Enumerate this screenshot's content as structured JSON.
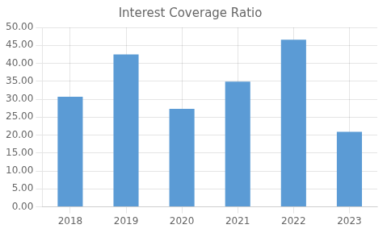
{
  "chart_data": {
    "type": "bar",
    "title": "Interest Coverage Ratio",
    "categories": [
      "2018",
      "2019",
      "2020",
      "2021",
      "2022",
      "2023"
    ],
    "values": [
      30.7,
      42.5,
      27.3,
      34.9,
      46.6,
      20.9
    ],
    "color": "#5B9BD5",
    "ylim": [
      0,
      50
    ],
    "yticks": [
      {
        "value": 0,
        "label": "0.00"
      },
      {
        "value": 5,
        "label": "5.00"
      },
      {
        "value": 10,
        "label": "10.00"
      },
      {
        "value": 15,
        "label": "15.00"
      },
      {
        "value": 20,
        "label": "20.00"
      },
      {
        "value": 25,
        "label": "25.00"
      },
      {
        "value": 30,
        "label": "30.00"
      },
      {
        "value": 35,
        "label": "35.00"
      },
      {
        "value": 40,
        "label": "40.00"
      },
      {
        "value": 45,
        "label": "45.00"
      },
      {
        "value": 50,
        "label": "50.00"
      }
    ],
    "grid": true
  }
}
